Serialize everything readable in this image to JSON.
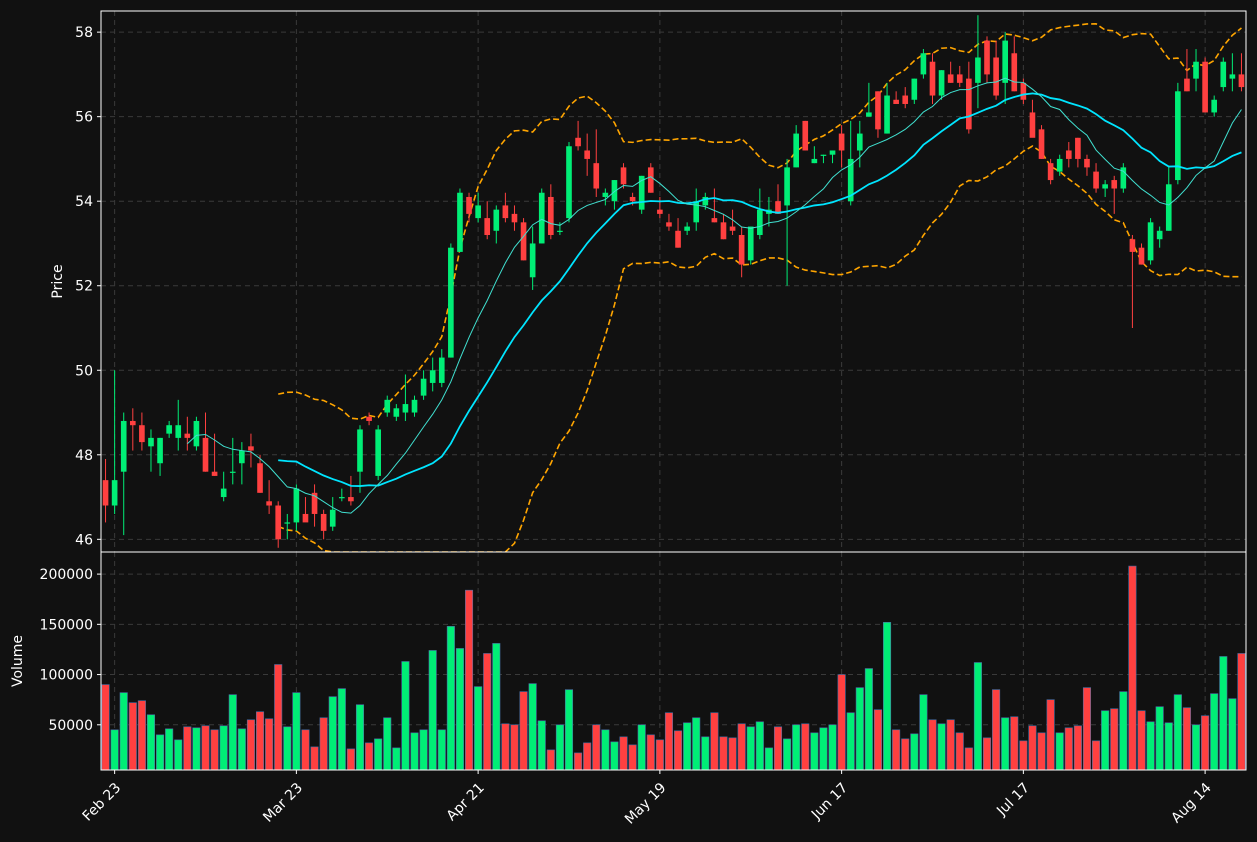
{
  "chart_data": {
    "type": "candlestick",
    "price_panel": {
      "ylabel": "Price",
      "ylim": [
        45.7,
        58.5
      ],
      "yticks": [
        46,
        48,
        50,
        52,
        54,
        56,
        58
      ],
      "grid": true,
      "overlays": [
        {
          "kind": "moving-average",
          "color": "#00e5ff",
          "style": "solid"
        },
        {
          "kind": "moving-average",
          "color": "#40e0d0",
          "style": "solid"
        },
        {
          "kind": "bollinger-bands",
          "color": "#ffa500",
          "style": "dashed"
        }
      ]
    },
    "volume_panel": {
      "ylabel": "Volume",
      "ylim": [
        5000,
        222000
      ],
      "yticks": [
        50000,
        100000,
        150000,
        200000
      ],
      "ytick_labels": [
        "50000",
        "100000",
        "150000",
        "200000"
      ],
      "grid": true
    },
    "x_axis": {
      "start_date": "2024-02-22",
      "tick_labels": [
        "Feb 23",
        "Mar 23",
        "Apr 21",
        "May 19",
        "Jun 17",
        "Jul 17",
        "Aug 14"
      ],
      "tick_index": [
        1,
        21,
        41,
        61,
        81,
        101,
        121
      ]
    },
    "colors": {
      "up": "#00ee76",
      "down": "#ff4040",
      "background": "#111111",
      "grid": "#3a3a3a",
      "border": "#ffffff"
    },
    "candles": [
      [
        47.4,
        47.9,
        46.4,
        46.8,
        90000
      ],
      [
        46.8,
        50.0,
        46.6,
        47.4,
        45000
      ],
      [
        47.6,
        49.0,
        46.1,
        48.8,
        82000
      ],
      [
        48.8,
        49.1,
        48.1,
        48.7,
        72000
      ],
      [
        48.7,
        49.0,
        48.1,
        48.3,
        74000
      ],
      [
        48.2,
        48.6,
        47.6,
        48.4,
        60000
      ],
      [
        47.8,
        48.4,
        47.5,
        48.4,
        40000
      ],
      [
        48.5,
        48.8,
        48.4,
        48.7,
        46000
      ],
      [
        48.4,
        49.3,
        48.1,
        48.7,
        35000
      ],
      [
        48.5,
        48.9,
        48.1,
        48.4,
        48000
      ],
      [
        48.2,
        48.9,
        48.1,
        48.8,
        47000
      ],
      [
        48.4,
        49.0,
        47.6,
        47.6,
        49000
      ],
      [
        47.6,
        48.5,
        47.5,
        47.5,
        45000
      ],
      [
        47.0,
        47.6,
        46.9,
        47.2,
        49000
      ],
      [
        47.6,
        48.4,
        47.3,
        47.6,
        80000
      ],
      [
        47.8,
        48.3,
        47.3,
        48.1,
        46000
      ],
      [
        48.2,
        48.5,
        47.7,
        48.1,
        55000
      ],
      [
        47.8,
        48.0,
        47.1,
        47.1,
        63000
      ],
      [
        46.9,
        47.4,
        46.6,
        46.8,
        56000
      ],
      [
        46.8,
        46.9,
        45.8,
        46.0,
        110000
      ],
      [
        46.4,
        46.6,
        46.0,
        46.4,
        48000
      ],
      [
        46.4,
        47.3,
        46.2,
        47.2,
        82000
      ],
      [
        46.6,
        47.0,
        46.5,
        46.4,
        45000
      ],
      [
        47.1,
        47.3,
        46.3,
        46.6,
        28000
      ],
      [
        46.6,
        46.7,
        46.0,
        46.2,
        57000
      ],
      [
        46.3,
        47.0,
        46.2,
        46.7,
        78000
      ],
      [
        47.0,
        47.2,
        46.9,
        47.0,
        86000
      ],
      [
        47.0,
        47.5,
        46.8,
        46.9,
        26000
      ],
      [
        47.6,
        48.7,
        47.1,
        48.6,
        70000
      ],
      [
        48.9,
        49.0,
        48.7,
        48.8,
        32000
      ],
      [
        47.5,
        48.7,
        47.4,
        48.6,
        36000
      ],
      [
        49.0,
        49.4,
        48.9,
        49.3,
        57000
      ],
      [
        48.9,
        49.2,
        48.8,
        49.1,
        27000
      ],
      [
        49.0,
        49.9,
        48.8,
        49.2,
        113000
      ],
      [
        49.0,
        49.4,
        48.9,
        49.3,
        42000
      ],
      [
        49.4,
        50.0,
        49.3,
        49.8,
        45000
      ],
      [
        49.7,
        50.3,
        49.5,
        50.0,
        124000
      ],
      [
        49.7,
        50.5,
        49.6,
        50.3,
        45000
      ],
      [
        50.3,
        53.0,
        50.3,
        52.9,
        148000
      ],
      [
        52.8,
        54.3,
        52.8,
        54.2,
        126000
      ],
      [
        54.1,
        54.2,
        53.5,
        53.7,
        184000
      ],
      [
        53.6,
        54.2,
        53.5,
        53.9,
        88000
      ],
      [
        53.6,
        54.0,
        53.1,
        53.2,
        121000
      ],
      [
        53.3,
        53.9,
        53.0,
        53.8,
        131000
      ],
      [
        53.9,
        54.2,
        53.5,
        53.6,
        51000
      ],
      [
        53.7,
        53.9,
        53.3,
        53.5,
        50000
      ],
      [
        53.5,
        53.6,
        52.6,
        52.6,
        83000
      ],
      [
        52.2,
        53.4,
        51.9,
        53.0,
        91000
      ],
      [
        53.0,
        54.3,
        53.0,
        54.2,
        54000
      ],
      [
        54.1,
        54.4,
        53.1,
        53.2,
        25000
      ],
      [
        53.3,
        53.5,
        53.2,
        53.3,
        50000
      ],
      [
        53.6,
        55.4,
        53.5,
        55.3,
        85000
      ],
      [
        55.5,
        55.9,
        55.2,
        55.3,
        22000
      ],
      [
        55.2,
        55.6,
        54.6,
        55.0,
        32000
      ],
      [
        54.9,
        55.7,
        54.1,
        54.3,
        50000
      ],
      [
        54.1,
        54.3,
        53.9,
        54.2,
        45000
      ],
      [
        54.0,
        54.5,
        53.8,
        54.5,
        33000
      ],
      [
        54.8,
        54.9,
        54.3,
        54.4,
        38000
      ],
      [
        54.1,
        54.2,
        53.9,
        54.0,
        30000
      ],
      [
        53.8,
        54.6,
        53.7,
        54.6,
        50000
      ],
      [
        54.8,
        54.9,
        54.2,
        54.2,
        40000
      ],
      [
        53.8,
        54.1,
        53.6,
        53.7,
        35000
      ],
      [
        53.5,
        53.7,
        53.3,
        53.4,
        62000
      ],
      [
        53.3,
        53.6,
        52.9,
        52.9,
        44000
      ],
      [
        53.3,
        53.5,
        53.2,
        53.4,
        52000
      ],
      [
        53.5,
        54.3,
        53.3,
        54.0,
        57000
      ],
      [
        53.9,
        54.2,
        53.8,
        54.1,
        38000
      ],
      [
        53.6,
        54.3,
        53.5,
        53.5,
        62000
      ],
      [
        53.5,
        53.7,
        53.1,
        53.1,
        38000
      ],
      [
        53.4,
        53.8,
        53.2,
        53.3,
        37000
      ],
      [
        53.2,
        53.4,
        52.2,
        52.5,
        51000
      ],
      [
        52.6,
        53.4,
        52.5,
        53.4,
        48000
      ],
      [
        53.2,
        54.3,
        53.1,
        53.8,
        53000
      ],
      [
        53.7,
        54.1,
        53.4,
        53.8,
        27000
      ],
      [
        54.0,
        54.4,
        53.8,
        53.7,
        48000
      ],
      [
        53.9,
        55.0,
        52.0,
        54.8,
        36000
      ],
      [
        54.8,
        55.8,
        54.8,
        55.6,
        50000
      ],
      [
        55.9,
        55.9,
        55.2,
        55.2,
        51000
      ],
      [
        54.9,
        55.3,
        54.9,
        55.0,
        42000
      ],
      [
        55.1,
        55.1,
        54.9,
        55.1,
        47000
      ],
      [
        55.1,
        55.2,
        54.9,
        55.2,
        50000
      ],
      [
        55.6,
        55.8,
        54.8,
        55.2,
        100000
      ],
      [
        54.0,
        55.9,
        53.9,
        55.0,
        62000
      ],
      [
        55.2,
        55.9,
        54.8,
        55.6,
        87000
      ],
      [
        56.0,
        56.8,
        56.0,
        56.1,
        106000
      ],
      [
        56.6,
        56.6,
        55.5,
        55.7,
        65000
      ],
      [
        55.6,
        56.8,
        55.6,
        56.5,
        152000
      ],
      [
        56.4,
        56.6,
        56.3,
        56.3,
        45000
      ],
      [
        56.5,
        56.7,
        56.2,
        56.3,
        36000
      ],
      [
        56.4,
        56.9,
        56.3,
        56.9,
        41000
      ],
      [
        57.0,
        57.6,
        56.9,
        57.5,
        80000
      ],
      [
        57.3,
        57.5,
        56.3,
        56.5,
        55000
      ],
      [
        56.5,
        57.1,
        56.4,
        57.1,
        51000
      ],
      [
        57.0,
        57.3,
        56.8,
        56.8,
        55000
      ],
      [
        57.0,
        57.2,
        56.7,
        56.8,
        42000
      ],
      [
        56.9,
        57.3,
        55.6,
        55.7,
        27000
      ],
      [
        56.8,
        58.4,
        56.2,
        57.4,
        112000
      ],
      [
        57.8,
        57.9,
        56.8,
        57.0,
        37000
      ],
      [
        57.4,
        57.8,
        56.4,
        56.5,
        85000
      ],
      [
        56.8,
        58.0,
        56.3,
        57.8,
        57000
      ],
      [
        57.5,
        57.9,
        56.6,
        56.6,
        58000
      ],
      [
        56.8,
        56.9,
        56.3,
        56.4,
        34000
      ],
      [
        56.1,
        56.4,
        55.6,
        55.5,
        49000
      ],
      [
        55.7,
        55.8,
        55.0,
        55.0,
        42000
      ],
      [
        54.9,
        55.0,
        54.4,
        54.5,
        75000
      ],
      [
        54.7,
        55.1,
        54.6,
        55.0,
        42000
      ],
      [
        55.2,
        55.4,
        54.8,
        55.0,
        47000
      ],
      [
        55.5,
        55.5,
        54.8,
        55.0,
        49000
      ],
      [
        55.0,
        55.1,
        54.6,
        54.8,
        87000
      ],
      [
        54.7,
        54.9,
        54.2,
        54.3,
        34000
      ],
      [
        54.3,
        54.5,
        54.1,
        54.4,
        64000
      ],
      [
        54.5,
        54.6,
        53.7,
        54.3,
        66000
      ],
      [
        54.3,
        54.9,
        54.2,
        54.8,
        83000
      ],
      [
        53.1,
        53.2,
        51.0,
        52.8,
        208000
      ],
      [
        52.9,
        53.0,
        52.5,
        52.5,
        64000
      ],
      [
        52.6,
        53.6,
        52.5,
        53.5,
        53000
      ],
      [
        53.1,
        53.4,
        52.9,
        53.3,
        68000
      ],
      [
        53.3,
        54.8,
        53.3,
        54.4,
        52000
      ],
      [
        54.5,
        56.8,
        54.4,
        56.6,
        80000
      ],
      [
        56.9,
        57.6,
        56.6,
        56.6,
        67000
      ],
      [
        56.9,
        57.6,
        56.6,
        57.3,
        50000
      ],
      [
        57.3,
        57.4,
        56.1,
        56.1,
        59000
      ],
      [
        56.1,
        56.5,
        56.0,
        56.4,
        81000
      ],
      [
        56.7,
        57.4,
        56.6,
        57.3,
        118000
      ],
      [
        56.9,
        57.5,
        56.6,
        57.0,
        76000
      ],
      [
        57.0,
        57.5,
        56.6,
        56.7,
        121000
      ]
    ]
  }
}
